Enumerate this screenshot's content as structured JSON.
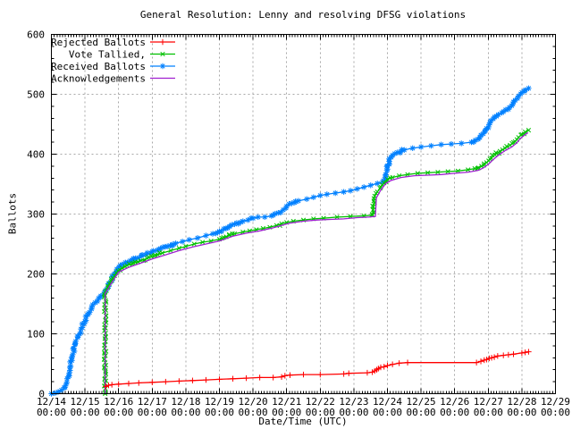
{
  "chart_data": {
    "type": "line",
    "title": "General Resolution: Lenny and resolving DFSG violations",
    "xlabel": "Date/Time (UTC)",
    "ylabel": "Ballots",
    "x_range_days": [
      0,
      15
    ],
    "ylim": [
      0,
      600
    ],
    "y_ticks": [
      0,
      100,
      200,
      300,
      400,
      500,
      600
    ],
    "y_minor_step": 20,
    "x_minor_per_day": 12,
    "grid": true,
    "grid_color": "#a8a8a8",
    "border_color": "#000000",
    "legend_position": "top-left",
    "x_ticks": [
      {
        "date": "12/14",
        "time": "00:00"
      },
      {
        "date": "12/15",
        "time": "00:00"
      },
      {
        "date": "12/16",
        "time": "00:00"
      },
      {
        "date": "12/17",
        "time": "00:00"
      },
      {
        "date": "12/18",
        "time": "00:00"
      },
      {
        "date": "12/19",
        "time": "00:00"
      },
      {
        "date": "12/20",
        "time": "00:00"
      },
      {
        "date": "12/21",
        "time": "00:00"
      },
      {
        "date": "12/22",
        "time": "00:00"
      },
      {
        "date": "12/23",
        "time": "00:00"
      },
      {
        "date": "12/24",
        "time": "00:00"
      },
      {
        "date": "12/25",
        "time": "00:00"
      },
      {
        "date": "12/26",
        "time": "00:00"
      },
      {
        "date": "12/27",
        "time": "00:00"
      },
      {
        "date": "12/28",
        "time": "00:00"
      },
      {
        "date": "12/29",
        "time": "00:00"
      }
    ],
    "series": [
      {
        "name": "Rejected Ballots",
        "color": "#ff0000",
        "marker": "plus",
        "marker_density": "sparse",
        "points": [
          [
            1.62,
            12
          ],
          [
            1.7,
            14
          ],
          [
            1.8,
            15
          ],
          [
            2.0,
            16
          ],
          [
            2.3,
            17
          ],
          [
            2.6,
            18
          ],
          [
            3.0,
            19
          ],
          [
            3.4,
            20
          ],
          [
            3.8,
            21
          ],
          [
            4.2,
            22
          ],
          [
            4.6,
            23
          ],
          [
            5.0,
            24
          ],
          [
            5.4,
            25
          ],
          [
            5.8,
            26
          ],
          [
            6.2,
            27
          ],
          [
            6.6,
            27
          ],
          [
            6.85,
            28
          ],
          [
            6.95,
            30
          ],
          [
            7.1,
            31
          ],
          [
            7.5,
            32
          ],
          [
            8.0,
            32
          ],
          [
            8.7,
            33
          ],
          [
            8.85,
            34
          ],
          [
            9.4,
            35
          ],
          [
            9.55,
            36
          ],
          [
            9.62,
            38
          ],
          [
            9.68,
            40
          ],
          [
            9.73,
            42
          ],
          [
            9.8,
            44
          ],
          [
            9.9,
            45
          ],
          [
            10.0,
            47
          ],
          [
            10.15,
            49
          ],
          [
            10.35,
            51
          ],
          [
            10.6,
            52
          ],
          [
            12.65,
            52
          ],
          [
            12.78,
            54
          ],
          [
            12.88,
            56
          ],
          [
            12.95,
            57
          ],
          [
            13.03,
            59
          ],
          [
            13.1,
            60
          ],
          [
            13.18,
            61
          ],
          [
            13.28,
            63
          ],
          [
            13.45,
            64
          ],
          [
            13.6,
            65
          ],
          [
            13.75,
            66
          ],
          [
            14.0,
            68
          ],
          [
            14.1,
            69
          ],
          [
            14.2,
            70
          ]
        ]
      },
      {
        "name": "Vote Tallied,",
        "color": "#00c000",
        "marker": "cross",
        "marker_density": "dense",
        "points": [
          [
            1.6,
            0
          ],
          [
            1.6,
            170
          ],
          [
            1.68,
            177
          ],
          [
            1.78,
            188
          ],
          [
            1.88,
            197
          ],
          [
            1.98,
            205
          ],
          [
            2.1,
            210
          ],
          [
            2.25,
            214
          ],
          [
            2.45,
            218
          ],
          [
            2.65,
            222
          ],
          [
            2.85,
            226
          ],
          [
            3.05,
            230
          ],
          [
            3.3,
            235
          ],
          [
            3.55,
            239
          ],
          [
            3.8,
            243
          ],
          [
            4.0,
            246
          ],
          [
            4.25,
            250
          ],
          [
            4.5,
            253
          ],
          [
            4.75,
            255
          ],
          [
            5.0,
            258
          ],
          [
            5.2,
            262
          ],
          [
            5.45,
            267
          ],
          [
            5.7,
            270
          ],
          [
            5.9,
            272
          ],
          [
            6.1,
            274
          ],
          [
            6.3,
            276
          ],
          [
            6.5,
            278
          ],
          [
            6.7,
            281
          ],
          [
            6.85,
            284
          ],
          [
            7.0,
            286
          ],
          [
            7.2,
            288
          ],
          [
            7.5,
            290
          ],
          [
            7.8,
            292
          ],
          [
            8.1,
            293
          ],
          [
            8.5,
            295
          ],
          [
            8.9,
            296
          ],
          [
            9.3,
            297
          ],
          [
            9.55,
            298
          ],
          [
            9.58,
            312
          ],
          [
            9.62,
            330
          ],
          [
            9.7,
            337
          ],
          [
            9.8,
            345
          ],
          [
            9.9,
            352
          ],
          [
            10.0,
            358
          ],
          [
            10.15,
            361
          ],
          [
            10.35,
            364
          ],
          [
            10.6,
            366
          ],
          [
            10.9,
            368
          ],
          [
            11.2,
            369
          ],
          [
            11.5,
            370
          ],
          [
            11.8,
            371
          ],
          [
            12.1,
            372
          ],
          [
            12.4,
            374
          ],
          [
            12.6,
            376
          ],
          [
            12.8,
            380
          ],
          [
            12.95,
            386
          ],
          [
            13.05,
            392
          ],
          [
            13.2,
            399
          ],
          [
            13.35,
            405
          ],
          [
            13.5,
            410
          ],
          [
            13.65,
            415
          ],
          [
            13.8,
            421
          ],
          [
            13.9,
            428
          ],
          [
            14.0,
            433
          ],
          [
            14.1,
            437
          ],
          [
            14.2,
            440
          ]
        ]
      },
      {
        "name": "Received Ballots",
        "color": "#0080ff",
        "marker": "asterisk",
        "marker_density": "dense",
        "points": [
          [
            0.0,
            0
          ],
          [
            0.1,
            1
          ],
          [
            0.2,
            3
          ],
          [
            0.3,
            6
          ],
          [
            0.38,
            10
          ],
          [
            0.44,
            16
          ],
          [
            0.5,
            28
          ],
          [
            0.55,
            44
          ],
          [
            0.62,
            62
          ],
          [
            0.7,
            82
          ],
          [
            0.78,
            96
          ],
          [
            0.88,
            108
          ],
          [
            1.0,
            121
          ],
          [
            1.1,
            134
          ],
          [
            1.2,
            144
          ],
          [
            1.3,
            152
          ],
          [
            1.45,
            161
          ],
          [
            1.58,
            169
          ],
          [
            1.65,
            175
          ],
          [
            1.75,
            186
          ],
          [
            1.85,
            198
          ],
          [
            1.95,
            208
          ],
          [
            2.05,
            214
          ],
          [
            2.2,
            219
          ],
          [
            2.4,
            223
          ],
          [
            2.6,
            227
          ],
          [
            2.8,
            232
          ],
          [
            3.0,
            237
          ],
          [
            3.2,
            241
          ],
          [
            3.45,
            246
          ],
          [
            3.7,
            251
          ],
          [
            3.9,
            254
          ],
          [
            4.1,
            257
          ],
          [
            4.35,
            260
          ],
          [
            4.6,
            264
          ],
          [
            4.8,
            267
          ],
          [
            5.0,
            271
          ],
          [
            5.2,
            276
          ],
          [
            5.45,
            283
          ],
          [
            5.7,
            288
          ],
          [
            5.85,
            290
          ],
          [
            6.0,
            293
          ],
          [
            6.15,
            295
          ],
          [
            6.35,
            295
          ],
          [
            6.55,
            297
          ],
          [
            6.75,
            302
          ],
          [
            6.9,
            307
          ],
          [
            7.0,
            313
          ],
          [
            7.15,
            318
          ],
          [
            7.35,
            322
          ],
          [
            7.6,
            325
          ],
          [
            7.8,
            328
          ],
          [
            8.0,
            331
          ],
          [
            8.2,
            333
          ],
          [
            8.45,
            335
          ],
          [
            8.7,
            337
          ],
          [
            8.9,
            339
          ],
          [
            9.1,
            342
          ],
          [
            9.3,
            345
          ],
          [
            9.5,
            348
          ],
          [
            9.7,
            351
          ],
          [
            9.85,
            353
          ],
          [
            9.95,
            357
          ],
          [
            10.0,
            375
          ],
          [
            10.05,
            392
          ],
          [
            10.15,
            398
          ],
          [
            10.3,
            403
          ],
          [
            10.5,
            407
          ],
          [
            10.75,
            410
          ],
          [
            11.0,
            412
          ],
          [
            11.3,
            414
          ],
          [
            11.6,
            416
          ],
          [
            11.9,
            417
          ],
          [
            12.2,
            418
          ],
          [
            12.5,
            420
          ],
          [
            12.7,
            425
          ],
          [
            12.85,
            434
          ],
          [
            12.95,
            443
          ],
          [
            13.05,
            452
          ],
          [
            13.15,
            459
          ],
          [
            13.3,
            466
          ],
          [
            13.45,
            471
          ],
          [
            13.6,
            475
          ],
          [
            13.7,
            481
          ],
          [
            13.8,
            490
          ],
          [
            13.9,
            497
          ],
          [
            14.0,
            503
          ],
          [
            14.1,
            507
          ],
          [
            14.2,
            510
          ]
        ]
      },
      {
        "name": "Acknowledgements",
        "color": "#a020d0",
        "marker": "none",
        "marker_density": "none",
        "points": [
          [
            1.6,
            0
          ],
          [
            1.6,
            167
          ],
          [
            1.8,
            186
          ],
          [
            2.0,
            203
          ],
          [
            2.3,
            211
          ],
          [
            2.6,
            217
          ],
          [
            3.0,
            225
          ],
          [
            3.4,
            232
          ],
          [
            3.8,
            239
          ],
          [
            4.2,
            245
          ],
          [
            4.6,
            250
          ],
          [
            5.0,
            255
          ],
          [
            5.4,
            263
          ],
          [
            5.8,
            268
          ],
          [
            6.2,
            272
          ],
          [
            6.6,
            277
          ],
          [
            6.9,
            282
          ],
          [
            7.1,
            285
          ],
          [
            7.5,
            288
          ],
          [
            7.9,
            290
          ],
          [
            8.3,
            291
          ],
          [
            8.7,
            292
          ],
          [
            9.1,
            294
          ],
          [
            9.45,
            295
          ],
          [
            9.64,
            296
          ],
          [
            9.67,
            327
          ],
          [
            9.8,
            340
          ],
          [
            9.95,
            351
          ],
          [
            10.1,
            356
          ],
          [
            10.4,
            361
          ],
          [
            10.8,
            364
          ],
          [
            11.2,
            365
          ],
          [
            11.6,
            366
          ],
          [
            12.0,
            368
          ],
          [
            12.4,
            370
          ],
          [
            12.7,
            373
          ],
          [
            12.85,
            377
          ],
          [
            13.0,
            383
          ],
          [
            13.15,
            391
          ],
          [
            13.3,
            398
          ],
          [
            13.5,
            406
          ],
          [
            13.7,
            412
          ],
          [
            13.85,
            419
          ],
          [
            13.95,
            426
          ],
          [
            14.1,
            433
          ],
          [
            14.18,
            436
          ]
        ]
      }
    ]
  }
}
